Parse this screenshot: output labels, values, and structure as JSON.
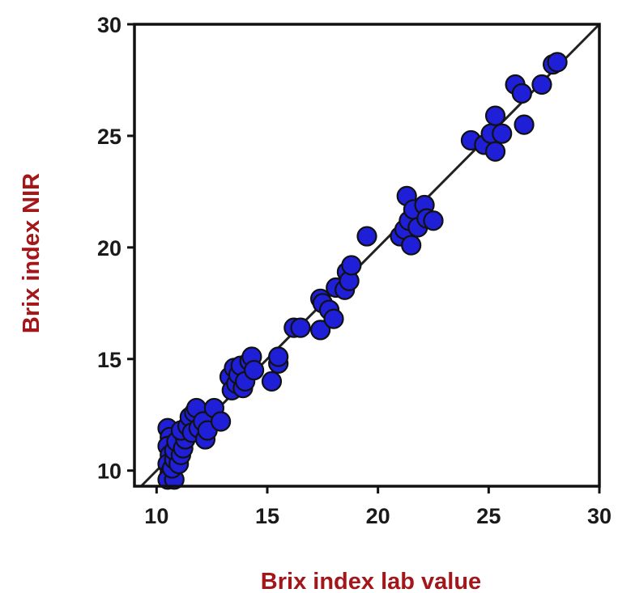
{
  "chart_data": {
    "type": "scatter",
    "title": "",
    "xlabel": "Brix index lab value",
    "ylabel": "Brix index NIR",
    "xlim": [
      9,
      30
    ],
    "ylim": [
      9.3,
      30
    ],
    "x_ticks": [
      10,
      15,
      20,
      25,
      30
    ],
    "y_ticks": [
      10,
      15,
      20,
      25,
      30
    ],
    "grid": false,
    "reference_line": "y = x",
    "colors": {
      "marker_fill": "#1f1fd8",
      "marker_edge": "#111111",
      "axis_title": "#a3161a",
      "tick_text": "#1a1a1a"
    },
    "series": [
      {
        "points": [
          [
            10.5,
            11.9
          ],
          [
            10.6,
            11.5
          ],
          [
            10.5,
            11.1
          ],
          [
            10.6,
            10.7
          ],
          [
            10.5,
            10.3
          ],
          [
            10.6,
            9.9
          ],
          [
            10.5,
            9.6
          ],
          [
            10.8,
            9.6
          ],
          [
            10.7,
            10.1
          ],
          [
            10.8,
            10.5
          ],
          [
            10.8,
            10.9
          ],
          [
            10.9,
            11.3
          ],
          [
            11.0,
            10.3
          ],
          [
            11.1,
            10.7
          ],
          [
            11.2,
            11.0
          ],
          [
            11.3,
            11.4
          ],
          [
            11.1,
            11.8
          ],
          [
            11.4,
            12.0
          ],
          [
            11.5,
            12.4
          ],
          [
            11.7,
            12.6
          ],
          [
            11.8,
            12.8
          ],
          [
            11.6,
            11.7
          ],
          [
            11.9,
            11.9
          ],
          [
            12.1,
            12.2
          ],
          [
            12.2,
            11.4
          ],
          [
            12.3,
            11.8
          ],
          [
            12.6,
            12.8
          ],
          [
            12.9,
            12.2
          ],
          [
            13.3,
            14.2
          ],
          [
            13.4,
            13.6
          ],
          [
            13.5,
            14.6
          ],
          [
            13.6,
            13.9
          ],
          [
            13.7,
            14.3
          ],
          [
            13.8,
            14.7
          ],
          [
            13.9,
            13.7
          ],
          [
            14.0,
            14.0
          ],
          [
            14.2,
            14.9
          ],
          [
            14.3,
            15.1
          ],
          [
            14.4,
            14.5
          ],
          [
            15.2,
            14.0
          ],
          [
            15.5,
            14.8
          ],
          [
            15.5,
            15.1
          ],
          [
            16.2,
            16.4
          ],
          [
            16.5,
            16.4
          ],
          [
            17.4,
            16.3
          ],
          [
            17.4,
            17.7
          ],
          [
            17.5,
            17.5
          ],
          [
            17.8,
            17.2
          ],
          [
            18.0,
            16.8
          ],
          [
            18.1,
            18.2
          ],
          [
            18.5,
            18.1
          ],
          [
            18.6,
            18.9
          ],
          [
            18.7,
            18.5
          ],
          [
            18.8,
            19.2
          ],
          [
            19.5,
            20.5
          ],
          [
            21.0,
            20.5
          ],
          [
            21.2,
            20.8
          ],
          [
            21.3,
            22.3
          ],
          [
            21.4,
            21.2
          ],
          [
            21.5,
            20.1
          ],
          [
            21.6,
            21.7
          ],
          [
            21.8,
            20.9
          ],
          [
            22.1,
            21.9
          ],
          [
            22.2,
            21.3
          ],
          [
            22.5,
            21.2
          ],
          [
            24.2,
            24.8
          ],
          [
            24.8,
            24.6
          ],
          [
            25.1,
            25.1
          ],
          [
            25.3,
            25.9
          ],
          [
            25.3,
            24.3
          ],
          [
            25.6,
            25.1
          ],
          [
            26.2,
            27.3
          ],
          [
            26.5,
            26.9
          ],
          [
            26.6,
            25.5
          ],
          [
            27.4,
            27.3
          ],
          [
            27.9,
            28.2
          ],
          [
            28.1,
            28.3
          ]
        ]
      }
    ]
  }
}
